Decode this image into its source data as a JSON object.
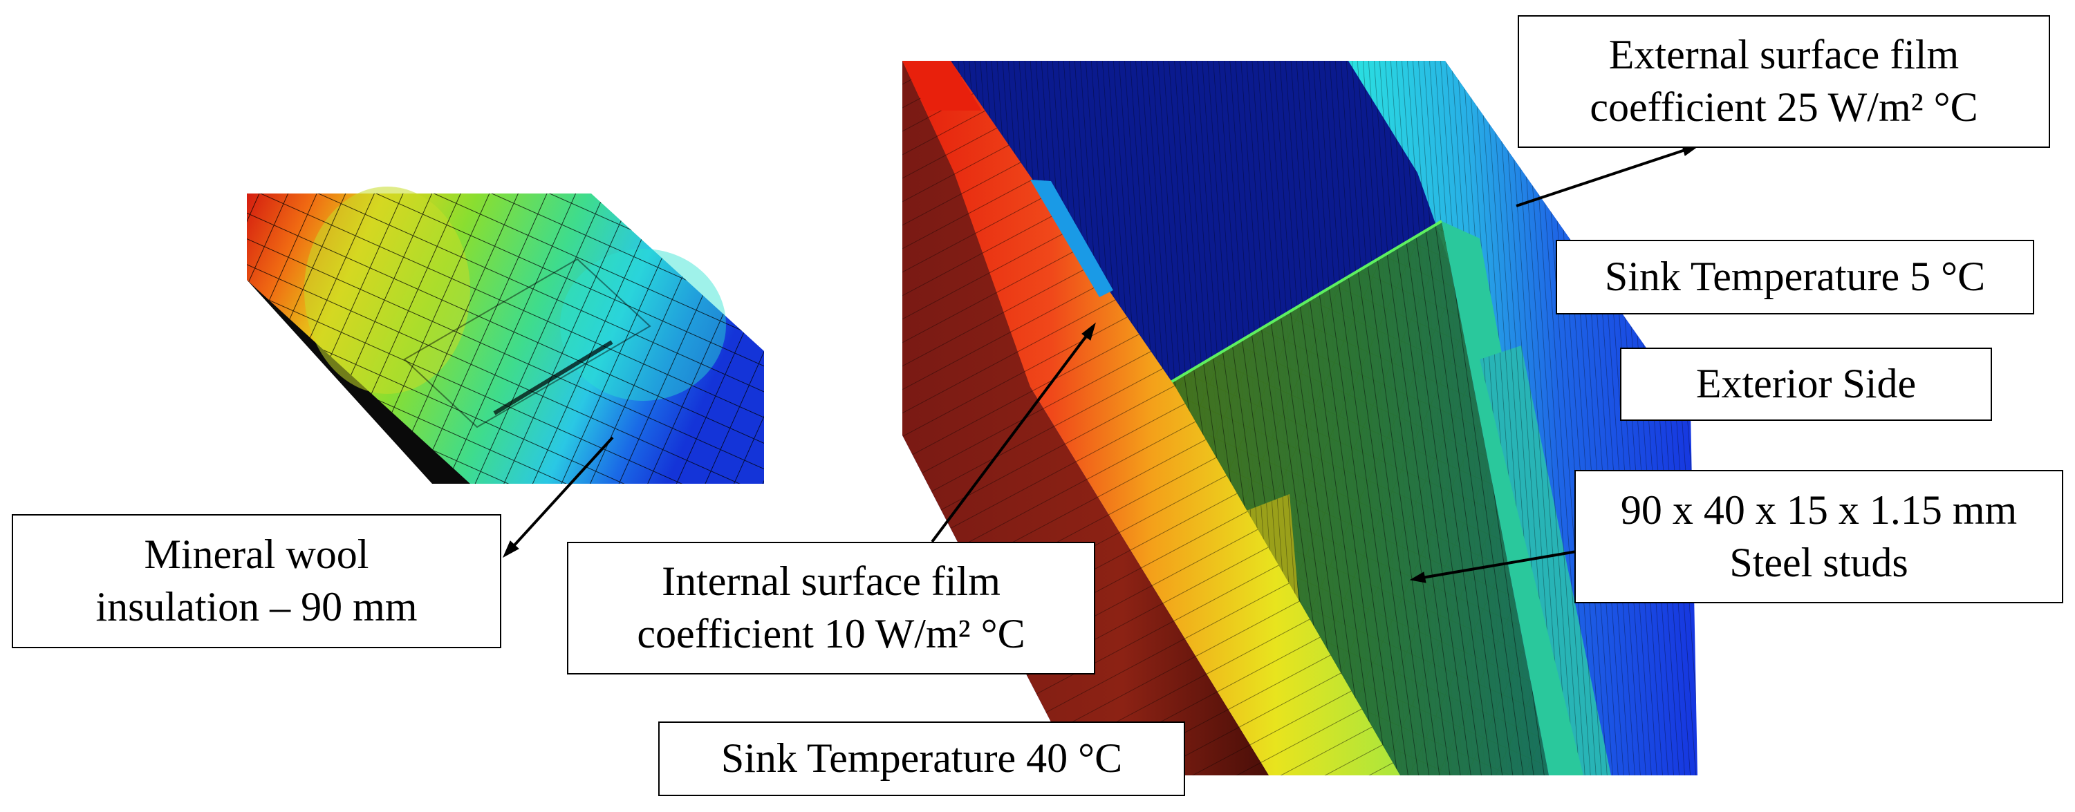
{
  "labels": {
    "mineral_wool": {
      "line1": "Mineral wool",
      "line2": "insulation – 90 mm"
    },
    "internal_film": {
      "line1": "Internal surface film",
      "line2": "coefficient 10 W/m² °C"
    },
    "sink_temp_40": {
      "text": "Sink Temperature 40 °C"
    },
    "external_film": {
      "line1": "External surface film",
      "line2": "coefficient 25 W/m² °C"
    },
    "sink_temp_5": {
      "text": "Sink Temperature 5 °C"
    },
    "exterior_side": {
      "text": "Exterior Side"
    },
    "steel_studs": {
      "line1": "90 x 40 x 15 x 1.15 mm",
      "line2": "Steel studs"
    }
  },
  "colors": {
    "hot": "#e81e0a",
    "warm": "#f5a510",
    "mid": "#4cd848",
    "cool": "#25e6d2",
    "cold": "#0a1a8c",
    "exterior": "#1a48e6"
  }
}
